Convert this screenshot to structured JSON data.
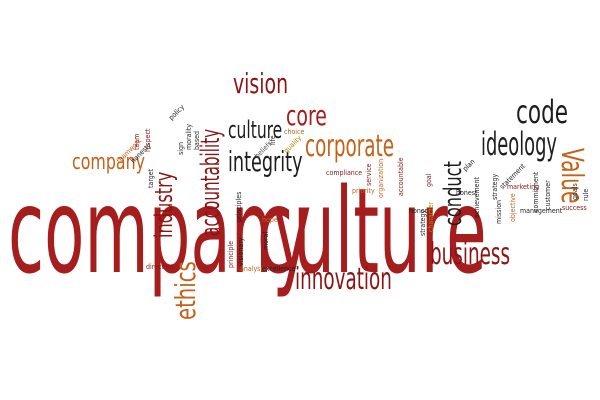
{
  "palette": {
    "dark_red": "#8b1414",
    "red": "#a51d1d",
    "orange": "#c4621a",
    "gold": "#b8860b",
    "black": "#1e1e1e",
    "gray": "#555555"
  },
  "words": [
    {
      "id": "company-large",
      "text": "company",
      "color": "red",
      "size": 118,
      "rotate": 0
    },
    {
      "id": "culture-large",
      "text": "culture",
      "color": "red",
      "size": 118,
      "rotate": 0
    },
    {
      "id": "industry",
      "text": "industry",
      "color": "dark_red",
      "size": 24,
      "rotate": -90
    },
    {
      "id": "accountability",
      "text": "accountability",
      "color": "dark_red",
      "size": 26,
      "rotate": -90
    },
    {
      "id": "vision",
      "text": "vision",
      "color": "dark_red",
      "size": 28,
      "rotate": 0
    },
    {
      "id": "culture-small",
      "text": "culture",
      "color": "black",
      "size": 24,
      "rotate": 0
    },
    {
      "id": "core",
      "text": "core",
      "color": "red",
      "size": 28,
      "rotate": 0
    },
    {
      "id": "integrity",
      "text": "integrity",
      "color": "black",
      "size": 28,
      "rotate": 0
    },
    {
      "id": "corporate",
      "text": "corporate",
      "color": "orange",
      "size": 30,
      "rotate": 0
    },
    {
      "id": "company-small",
      "text": "company",
      "color": "orange",
      "size": 22,
      "rotate": 0
    },
    {
      "id": "code",
      "text": "code",
      "color": "black",
      "size": 32,
      "rotate": 0
    },
    {
      "id": "ideology",
      "text": "ideology",
      "color": "black",
      "size": 32,
      "rotate": 0
    },
    {
      "id": "value",
      "text": "Value",
      "color": "orange",
      "size": 30,
      "rotate": 90
    },
    {
      "id": "conduct",
      "text": "conduct",
      "color": "black",
      "size": 24,
      "rotate": -90
    },
    {
      "id": "business",
      "text": "business",
      "color": "dark_red",
      "size": 30,
      "rotate": 0
    },
    {
      "id": "innovation",
      "text": "innovation",
      "color": "dark_red",
      "size": 30,
      "rotate": 0
    },
    {
      "id": "ethics",
      "text": "ethics",
      "color": "orange",
      "size": 28,
      "rotate": -90
    },
    {
      "id": "policy",
      "text": "policy",
      "color": "black",
      "size": 7,
      "rotate": -45
    },
    {
      "id": "team",
      "text": "team",
      "color": "dark_red",
      "size": 7,
      "rotate": -90
    },
    {
      "id": "respect",
      "text": "respect",
      "color": "dark_red",
      "size": 7,
      "rotate": -90
    },
    {
      "id": "teamwork",
      "text": "teamwork",
      "color": "orange",
      "size": 7,
      "rotate": -45
    },
    {
      "id": "honesty",
      "text": "honesty",
      "color": "black",
      "size": 7,
      "rotate": -45
    },
    {
      "id": "target",
      "text": "target",
      "color": "black",
      "size": 7,
      "rotate": -90
    },
    {
      "id": "sign",
      "text": "sign",
      "color": "black",
      "size": 7,
      "rotate": -90
    },
    {
      "id": "morality",
      "text": "morality",
      "color": "black",
      "size": 7,
      "rotate": -90
    },
    {
      "id": "based",
      "text": "based",
      "color": "black",
      "size": 7,
      "rotate": -90
    },
    {
      "id": "beliefs",
      "text": "beliefs",
      "color": "gray",
      "size": 7,
      "rotate": -45
    },
    {
      "id": "life",
      "text": "life",
      "color": "black",
      "size": 7,
      "rotate": -90
    },
    {
      "id": "choice",
      "text": "choice",
      "color": "orange",
      "size": 7,
      "rotate": 0
    },
    {
      "id": "quality",
      "text": "quality",
      "color": "gold",
      "size": 7,
      "rotate": -45
    },
    {
      "id": "compliance",
      "text": "compliance",
      "color": "dark_red",
      "size": 7,
      "rotate": 0
    },
    {
      "id": "priority",
      "text": "priority",
      "color": "orange",
      "size": 7,
      "rotate": 0
    },
    {
      "id": "service",
      "text": "service",
      "color": "dark_red",
      "size": 7,
      "rotate": -90
    },
    {
      "id": "organization",
      "text": "organization",
      "color": "orange",
      "size": 7,
      "rotate": -90
    },
    {
      "id": "accountable",
      "text": "accountable",
      "color": "dark_red",
      "size": 7,
      "rotate": -90
    },
    {
      "id": "goal",
      "text": "goal",
      "color": "dark_red",
      "size": 7,
      "rotate": -90
    },
    {
      "id": "plan",
      "text": "plan",
      "color": "black",
      "size": 7,
      "rotate": -45
    },
    {
      "id": "achievement",
      "text": "achievement",
      "color": "black",
      "size": 7,
      "rotate": -90
    },
    {
      "id": "strategy-right",
      "text": "strategy",
      "color": "black",
      "size": 7,
      "rotate": -90
    },
    {
      "id": "statement",
      "text": "statement",
      "color": "black",
      "size": 7,
      "rotate": -45
    },
    {
      "id": "marketing",
      "text": "marketing",
      "color": "dark_red",
      "size": 7,
      "rotate": 0
    },
    {
      "id": "commitment",
      "text": "commitment",
      "color": "black",
      "size": 7,
      "rotate": -90
    },
    {
      "id": "customer",
      "text": "customer",
      "color": "black",
      "size": 7,
      "rotate": -90
    },
    {
      "id": "objective",
      "text": "objective",
      "color": "orange",
      "size": 7,
      "rotate": -90
    },
    {
      "id": "management",
      "text": "management",
      "color": "black",
      "size": 7,
      "rotate": 0
    },
    {
      "id": "success",
      "text": "success",
      "color": "dark_red",
      "size": 7,
      "rotate": 0
    },
    {
      "id": "goals",
      "text": "goals",
      "color": "black",
      "size": 7,
      "rotate": -90
    },
    {
      "id": "rule",
      "text": "rule",
      "color": "black",
      "size": 7,
      "rotate": -90
    },
    {
      "id": "mission",
      "text": "mission",
      "color": "black",
      "size": 7,
      "rotate": -90
    },
    {
      "id": "honor",
      "text": "honor",
      "color": "black",
      "size": 7,
      "rotate": 0
    },
    {
      "id": "strategy-left",
      "text": "strategy",
      "color": "black",
      "size": 7,
      "rotate": -90
    },
    {
      "id": "character",
      "text": "character",
      "color": "gold",
      "size": 7,
      "rotate": -90
    },
    {
      "id": "hope",
      "text": "hope",
      "color": "orange",
      "size": 7,
      "rotate": 0
    },
    {
      "id": "principles",
      "text": "principles",
      "color": "black",
      "size": 7,
      "rotate": -90
    },
    {
      "id": "visionary",
      "text": "visionary",
      "color": "black",
      "size": 7,
      "rotate": -90
    },
    {
      "id": "principle",
      "text": "principle",
      "color": "dark_red",
      "size": 7,
      "rotate": -90
    },
    {
      "id": "moral",
      "text": "moral",
      "color": "black",
      "size": 7,
      "rotate": -90
    },
    {
      "id": "direction",
      "text": "direction",
      "color": "dark_red",
      "size": 7,
      "rotate": 0
    },
    {
      "id": "analysis",
      "text": "analysis",
      "color": "orange",
      "size": 7,
      "rotate": 0
    },
    {
      "id": "excellence",
      "text": "excellence",
      "color": "black",
      "size": 7,
      "rotate": 0
    },
    {
      "id": "honest",
      "text": "honest",
      "color": "black",
      "size": 7,
      "rotate": 0
    }
  ]
}
